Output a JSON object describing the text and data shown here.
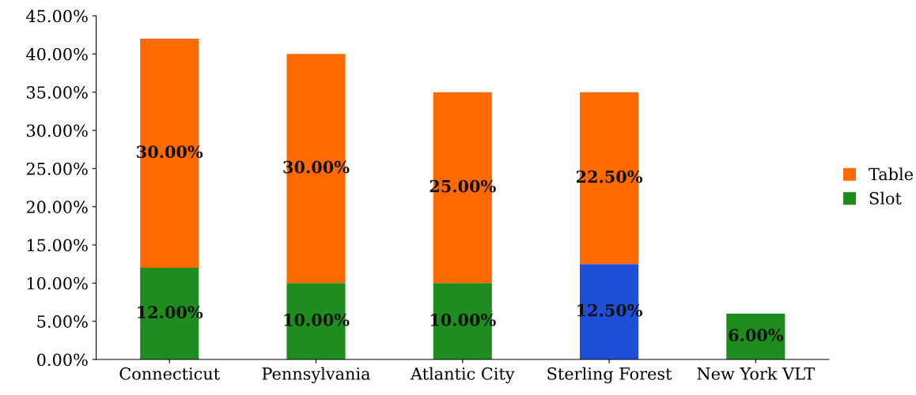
{
  "chart_data": {
    "type": "bar",
    "stacked": true,
    "categories": [
      "Connecticut",
      "Pennsylvania",
      "Atlantic City",
      "Sterling Forest",
      "New York VLT"
    ],
    "series": [
      {
        "name": "Slot",
        "color": "#1e8c1e",
        "colors": [
          "#1e8c1e",
          "#1e8c1e",
          "#1e8c1e",
          "#1f4fd6",
          "#1e8c1e"
        ],
        "values": [
          12,
          10,
          10,
          12.5,
          6
        ],
        "value_labels": [
          "12.00%",
          "10.00%",
          "10.00%",
          "12.50%",
          "6.00%"
        ]
      },
      {
        "name": "Table",
        "color": "#ff6a00",
        "values": [
          30,
          30,
          25,
          22.5,
          null
        ],
        "value_labels": [
          "30.00%",
          "30.00%",
          "25.00%",
          "22.50%",
          null
        ]
      }
    ],
    "ylim": [
      0,
      45
    ],
    "yticks": [
      {
        "value": 0,
        "label": "0.00%"
      },
      {
        "value": 5,
        "label": "5.00%"
      },
      {
        "value": 10,
        "label": "10.00%"
      },
      {
        "value": 15,
        "label": "15.00%"
      },
      {
        "value": 20,
        "label": "20.00%"
      },
      {
        "value": 25,
        "label": "25.00%"
      },
      {
        "value": 30,
        "label": "30.00%"
      },
      {
        "value": 35,
        "label": "35.00%"
      },
      {
        "value": 40,
        "label": "40.00%"
      },
      {
        "value": 45,
        "label": "45.00%"
      }
    ],
    "grid": false,
    "legend": "right"
  }
}
